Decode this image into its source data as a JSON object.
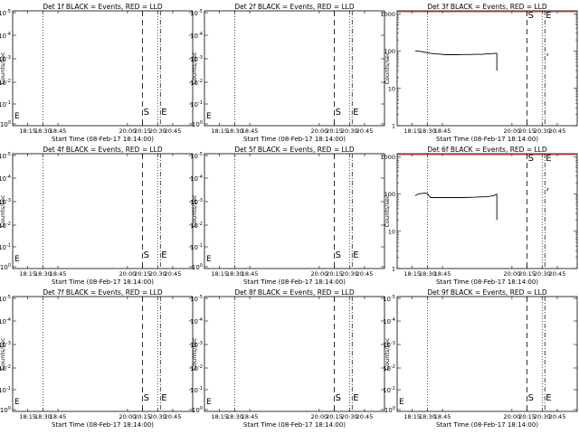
{
  "chart_data": [
    {
      "type": "line",
      "title": "Det 1f BLACK = Events, RED = LLD",
      "xlabel": "Start Time (08-Feb-17 18:14:00)",
      "ylabel": "Counts/sec",
      "xticks": [
        "18:15",
        "18:30",
        "18:45",
        "20:00",
        "20:15",
        "20:30",
        "20:45"
      ],
      "yticks": [
        "10^0",
        "10^-1",
        "10^-2",
        "10^-3",
        "10^-4",
        "10^-5"
      ],
      "yscale": "neg",
      "markers": [
        "S",
        "E"
      ],
      "series": []
    },
    {
      "type": "line",
      "title": "Det 2f BLACK = Events, RED = LLD",
      "xlabel": "Start Time (08-Feb-17 18:14:00)",
      "ylabel": "Counts/sec",
      "xticks": [
        "18:15",
        "18:30",
        "18:45",
        "20:00",
        "20:15",
        "20:30",
        "20:45"
      ],
      "yticks": [
        "10^0",
        "10^-1",
        "10^-2",
        "10^-3",
        "10^-4",
        "10^-5"
      ],
      "yscale": "neg",
      "markers": [
        "S",
        "E"
      ],
      "series": []
    },
    {
      "type": "line",
      "title": "Det 3f BLACK = Events, RED = LLD",
      "xlabel": "Start Time (08-Feb-17 18:14:00)",
      "ylabel": "Counts/sec",
      "xticks": [
        "18:15",
        "18:30",
        "18:45",
        "20:00",
        "20:15",
        "20:30",
        "20:45"
      ],
      "yticks": [
        "1",
        "10",
        "100",
        "1000"
      ],
      "yscale": "pos",
      "markers": [
        "S",
        "E"
      ],
      "series": [
        {
          "name": "Events",
          "points": [
            [
              18.3,
              101
            ],
            [
              18.4,
              98
            ],
            [
              18.5,
              90
            ],
            [
              18.6,
              85
            ],
            [
              18.7,
              83
            ],
            [
              18.8,
              80
            ],
            [
              18.9,
              80
            ],
            [
              19.0,
              80
            ],
            [
              19.1,
              81
            ],
            [
              19.2,
              81
            ],
            [
              19.3,
              82
            ],
            [
              19.4,
              82
            ],
            [
              19.5,
              84
            ],
            [
              19.6,
              86
            ],
            [
              19.65,
              88
            ]
          ]
        },
        {
          "name": "Events (late)",
          "points": [
            [
              20.48,
              75
            ],
            [
              20.5,
              85
            ]
          ]
        }
      ],
      "drop": [
        19.65,
        88,
        30
      ]
    },
    {
      "type": "line",
      "title": "Det 4f BLACK = Events, RED = LLD",
      "xlabel": "Start Time (08-Feb-17 18:14:00)",
      "ylabel": "Counts/sec",
      "xticks": [
        "18:15",
        "18:30",
        "18:45",
        "20:00",
        "20:15",
        "20:30",
        "20:45"
      ],
      "yticks": [
        "10^0",
        "10^-1",
        "10^-2",
        "10^-3",
        "10^-4",
        "10^-5"
      ],
      "yscale": "neg",
      "markers": [
        "S",
        "E"
      ],
      "series": []
    },
    {
      "type": "line",
      "title": "Det 5f BLACK = Events, RED = LLD",
      "xlabel": "Start Time (08-Feb-17 18:14:00)",
      "ylabel": "Counts/sec",
      "xticks": [
        "18:15",
        "18:30",
        "18:45",
        "20:00",
        "20:15",
        "20:30",
        "20:45"
      ],
      "yticks": [
        "10^0",
        "10^-1",
        "10^-2",
        "10^-3",
        "10^-4",
        "10^-5"
      ],
      "yscale": "neg",
      "markers": [
        "S",
        "E"
      ],
      "series": []
    },
    {
      "type": "line",
      "title": "Det 6f BLACK = Events, RED = LLD",
      "xlabel": "Start Time (08-Feb-17 18:14:00)",
      "ylabel": "Counts/sec",
      "xticks": [
        "18:15",
        "18:30",
        "18:45",
        "20:00",
        "20:15",
        "20:30",
        "20:45"
      ],
      "yticks": [
        "1",
        "10",
        "100",
        "1000"
      ],
      "yscale": "pos",
      "markers": [
        "S",
        "E"
      ],
      "series": [
        {
          "name": "Events",
          "points": [
            [
              18.3,
              90
            ],
            [
              18.35,
              100
            ],
            [
              18.45,
              105
            ],
            [
              18.5,
              103
            ],
            [
              18.55,
              80
            ],
            [
              18.7,
              80
            ],
            [
              18.9,
              80
            ],
            [
              19.1,
              80
            ],
            [
              19.3,
              82
            ],
            [
              19.5,
              85
            ],
            [
              19.6,
              90
            ],
            [
              19.65,
              100
            ]
          ]
        },
        {
          "name": "Events (late)",
          "points": [
            [
              20.48,
              120
            ],
            [
              20.5,
              145
            ]
          ]
        }
      ],
      "drop": [
        19.65,
        100,
        20
      ]
    },
    {
      "type": "line",
      "title": "Det 7f BLACK = Events, RED = LLD",
      "xlabel": "Start Time (08-Feb-17 18:14:00)",
      "ylabel": "Counts/sec",
      "xticks": [
        "18:15",
        "18:30",
        "18:45",
        "20:00",
        "20:15",
        "20:30",
        "20:45"
      ],
      "yticks": [
        "10^0",
        "10^-1",
        "10^-2",
        "10^-3",
        "10^-4",
        "10^-5"
      ],
      "yscale": "neg",
      "markers": [
        "S",
        "E"
      ],
      "series": []
    },
    {
      "type": "line",
      "title": "Det 8f BLACK = Events, RED = LLD",
      "xlabel": "Start Time (08-Feb-17 18:14:00)",
      "ylabel": "Counts/sec",
      "xticks": [
        "18:15",
        "18:30",
        "18:45",
        "20:00",
        "20:15",
        "20:30",
        "20:45"
      ],
      "yticks": [
        "10^0",
        "10^-1",
        "10^-2",
        "10^-3",
        "10^-4",
        "10^-5"
      ],
      "yscale": "neg",
      "markers": [
        "S",
        "E"
      ],
      "series": []
    },
    {
      "type": "line",
      "title": "Det 9f BLACK = Events, RED = LLD",
      "xlabel": "Start Time (08-Feb-17 18:14:00)",
      "ylabel": "Counts/sec",
      "xticks": [
        "18:15",
        "18:30",
        "18:45",
        "20:00",
        "20:15",
        "20:30",
        "20:45"
      ],
      "yticks": [
        "10^0",
        "10^-1",
        "10^-2",
        "10^-3",
        "10^-4",
        "10^-5"
      ],
      "yscale": "neg",
      "markers": [
        "S",
        "E"
      ],
      "series": []
    }
  ]
}
